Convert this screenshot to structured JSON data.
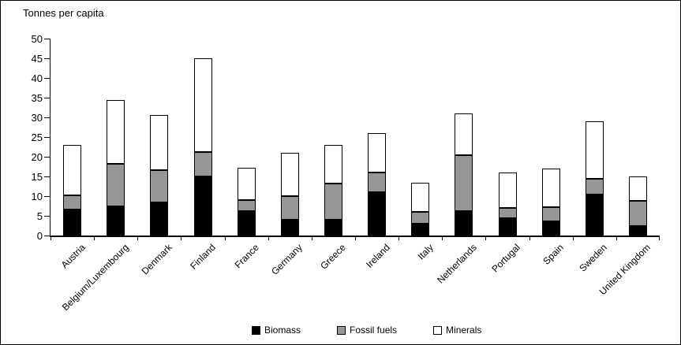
{
  "title": "Tonnes per capita",
  "chart_data": {
    "type": "bar",
    "stacked": true,
    "title": "Tonnes per capita",
    "categories": [
      "Austria",
      "Belgium/Luxembourg",
      "Denmark",
      "Finland",
      "France",
      "Germany",
      "Greece",
      "Ireland",
      "Italy",
      "Netherlands",
      "Portugal",
      "Spain",
      "Sweden",
      "United Kingdom"
    ],
    "series": [
      {
        "name": "Biomass",
        "color": "#000000",
        "values": [
          6.7,
          7.5,
          8.5,
          15.0,
          6.2,
          4.0,
          4.0,
          11.0,
          3.0,
          6.2,
          4.5,
          3.7,
          10.5,
          2.5
        ]
      },
      {
        "name": "Fossil fuels",
        "color": "#969696",
        "values": [
          3.5,
          10.8,
          8.2,
          6.2,
          2.9,
          6.0,
          9.2,
          5.0,
          3.0,
          14.3,
          2.5,
          3.5,
          4.0,
          6.4
        ]
      },
      {
        "name": "Minerals",
        "color": "#ffffff",
        "values": [
          12.8,
          16.2,
          13.9,
          23.8,
          8.2,
          11.0,
          9.8,
          10.0,
          7.5,
          10.5,
          9.0,
          9.8,
          14.5,
          6.1
        ]
      }
    ],
    "totals": [
      23.0,
      34.5,
      30.6,
      45.0,
      17.3,
      21.0,
      23.0,
      26.0,
      13.5,
      31.0,
      16.0,
      17.0,
      29.0,
      15.0
    ],
    "ylim": [
      0,
      50
    ],
    "yticks": [
      0,
      5,
      10,
      15,
      20,
      25,
      30,
      35,
      40,
      45,
      50
    ],
    "grid": false,
    "legend_position": "bottom",
    "bar_outline_color": "#000000",
    "axis_color": "#000000",
    "background_color": "#ffffff"
  }
}
